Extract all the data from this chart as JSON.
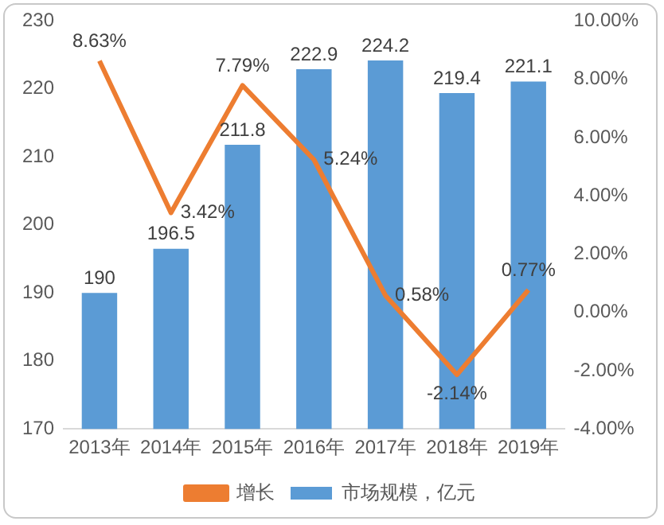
{
  "chart_data": {
    "type": "bar",
    "categories": [
      "2013年",
      "2014年",
      "2015年",
      "2016年",
      "2017年",
      "2018年",
      "2019年"
    ],
    "series": [
      {
        "name": "市场规模，亿元",
        "color": "#5b9bd5",
        "values": [
          190,
          196.5,
          211.8,
          222.9,
          224.2,
          219.4,
          221.1
        ],
        "value_labels": [
          "190",
          "196.5",
          "211.8",
          "222.9",
          "224.2",
          "219.4",
          "221.1"
        ]
      },
      {
        "name": "增长",
        "type": "line",
        "axis": "y2",
        "color": "#ed7d31",
        "values": [
          8.63,
          3.42,
          7.79,
          5.24,
          0.58,
          -2.14,
          0.77
        ],
        "value_labels": [
          "8.63%",
          "3.42%",
          "7.79%",
          "5.24%",
          "0.58%",
          "-2.14%",
          "0.77%"
        ]
      }
    ],
    "ylim": [
      170,
      230
    ],
    "yticks": [
      170,
      180,
      190,
      200,
      210,
      220,
      230
    ],
    "y2lim": [
      -4,
      10
    ],
    "y2ticks": [
      {
        "value": -4,
        "label": "-4.00%"
      },
      {
        "value": -2,
        "label": "-2.00%"
      },
      {
        "value": 0,
        "label": "0.00%"
      },
      {
        "value": 2,
        "label": "2.00%"
      },
      {
        "value": 4,
        "label": "4.00%"
      },
      {
        "value": 6,
        "label": "6.00%"
      },
      {
        "value": 8,
        "label": "8.00%"
      },
      {
        "value": 10,
        "label": "10.00%"
      }
    ],
    "grid": false,
    "legend": "bottom",
    "marker": "none",
    "line_style": "solid"
  }
}
